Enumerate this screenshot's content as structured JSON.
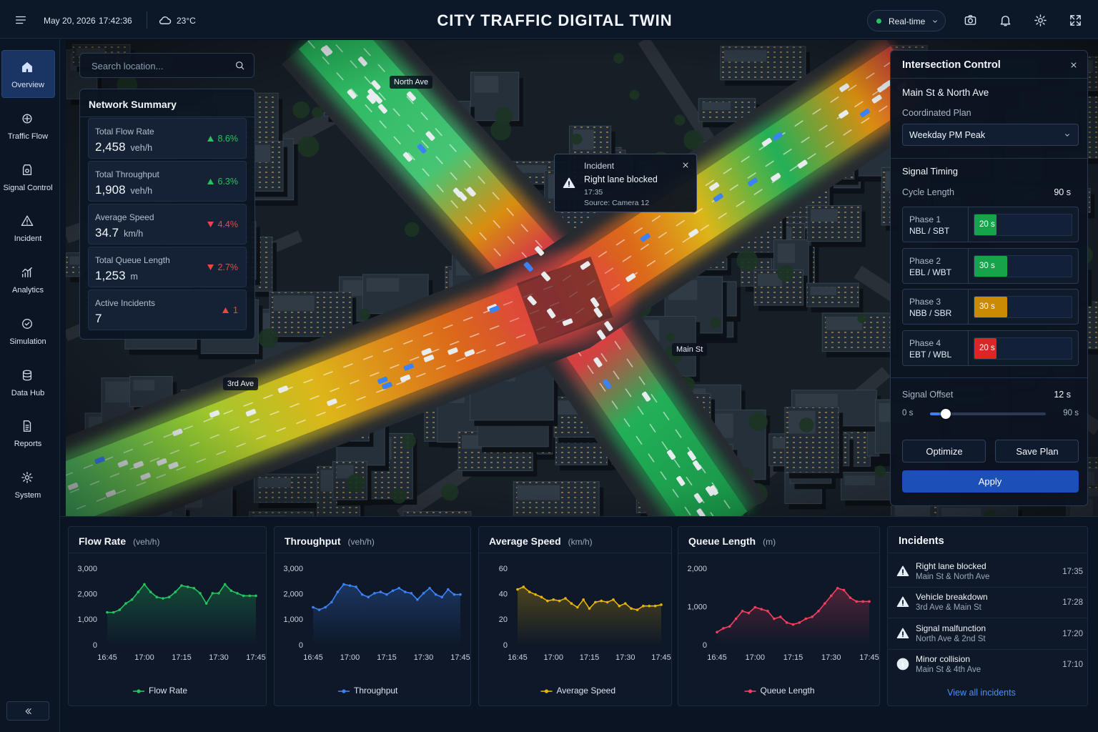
{
  "header": {
    "date": "May 20, 2026",
    "time": "17:42:36",
    "temperature": "23°C",
    "title": "CITY TRAFFIC DIGITAL TWIN",
    "mode": "Real-time"
  },
  "sidebar": {
    "items": [
      "Overview",
      "Traffic Flow",
      "Signal Control",
      "Incident",
      "Analytics",
      "Simulation",
      "Data Hub",
      "Reports",
      "System"
    ]
  },
  "search": {
    "placeholder": "Search location..."
  },
  "network_summary": {
    "title": "Network Summary",
    "items": [
      {
        "label": "Total Flow Rate",
        "value": "2,458",
        "unit": "veh/h",
        "change": "8.6%",
        "trend": "up",
        "color": "#22c55e"
      },
      {
        "label": "Total Throughput",
        "value": "1,908",
        "unit": "veh/h",
        "change": "6.3%",
        "trend": "up",
        "color": "#22c55e"
      },
      {
        "label": "Average Speed",
        "value": "34.7",
        "unit": "km/h",
        "change": "4.4%",
        "trend": "down",
        "color": "#ef4444"
      },
      {
        "label": "Total Queue Length",
        "value": "1,253",
        "unit": "m",
        "change": "2.7%",
        "trend": "down",
        "color": "#ef4444"
      },
      {
        "label": "Active Incidents",
        "value": "7",
        "change": "1",
        "trend": "up",
        "color": "#ef4444"
      }
    ]
  },
  "map": {
    "labels": [
      "North Ave",
      "Main St",
      "3rd Ave"
    ]
  },
  "incident_popup": {
    "title": "Incident",
    "message": "Right lane blocked",
    "time": "17:35",
    "source": "Source: Camera 12"
  },
  "intersection_control": {
    "title": "Intersection Control",
    "intersection": "Main St & North Ave",
    "plan_label": "Coordinated Plan",
    "plan": "Weekday PM Peak",
    "timing_title": "Signal Timing",
    "cycle_label": "Cycle Length",
    "cycle": {
      "value": 90,
      "label": "90 s"
    },
    "phases": [
      {
        "name": "Phase 1",
        "movement": "NBL / SBT",
        "value": 20,
        "label": "20 s",
        "color": "#16a34a"
      },
      {
        "name": "Phase 2",
        "movement": "EBL / WBT",
        "value": 30,
        "label": "30 s",
        "color": "#16a34a"
      },
      {
        "name": "Phase 3",
        "movement": "NBB / SBR",
        "value": 30,
        "label": "30 s",
        "color": "#ca8a04"
      },
      {
        "name": "Phase 4",
        "movement": "EBT / WBL",
        "value": 20,
        "label": "20 s",
        "color": "#dc2626"
      }
    ],
    "offset_label": "Signal Offset",
    "offset": {
      "value": 12,
      "label": "12 s"
    },
    "offset_range": [
      {
        "value": 0,
        "label": "0 s"
      },
      {
        "value": 90,
        "label": "90 s"
      }
    ],
    "buttons": [
      "Optimize",
      "Save Plan"
    ],
    "apply": "Apply"
  },
  "chart_data": [
    {
      "type": "line",
      "title": "Flow Rate",
      "subtitle": "(veh/h)",
      "categories": [
        "16:45",
        null,
        null,
        null,
        null,
        null,
        "17:00",
        null,
        null,
        null,
        null,
        null,
        "17:15",
        null,
        null,
        null,
        null,
        null,
        "17:30",
        null,
        null,
        null,
        null,
        null,
        "17:45"
      ],
      "series": [
        {
          "name": "Flow Rate",
          "color": "#22c55e",
          "values": [
            1300,
            1300,
            1400,
            1650,
            1800,
            2100,
            2400,
            2100,
            1900,
            1850,
            1900,
            2100,
            2350,
            2300,
            2250,
            2050,
            1650,
            2050,
            2050,
            2400,
            2150,
            2050,
            1950,
            1950,
            1950
          ]
        }
      ],
      "ylim": [
        0,
        3000
      ],
      "yticks": [
        0,
        {
          "value": 1000,
          "label": "1,000"
        },
        {
          "value": 2000,
          "label": "2,000"
        },
        {
          "value": 3000,
          "label": "3,000"
        }
      ],
      "grid": false
    },
    {
      "type": "line",
      "title": "Throughput",
      "subtitle": "(veh/h)",
      "categories": [
        "16:45",
        null,
        null,
        null,
        null,
        null,
        "17:00",
        null,
        null,
        null,
        null,
        null,
        "17:15",
        null,
        null,
        null,
        null,
        null,
        "17:30",
        null,
        null,
        null,
        null,
        null,
        "17:45"
      ],
      "series": [
        {
          "name": "Throughput",
          "color": "#3b82f6",
          "values": [
            1500,
            1400,
            1500,
            1700,
            2100,
            2400,
            2350,
            2300,
            2000,
            1900,
            2050,
            2100,
            2000,
            2150,
            2250,
            2100,
            2050,
            1800,
            2050,
            2250,
            2000,
            1900,
            2200,
            2000,
            2000
          ]
        }
      ],
      "ylim": [
        0,
        3000
      ],
      "yticks": [
        0,
        {
          "value": 1000,
          "label": "1,000"
        },
        {
          "value": 2000,
          "label": "2,000"
        },
        {
          "value": 3000,
          "label": "3,000"
        }
      ],
      "grid": false
    },
    {
      "type": "line",
      "title": "Average Speed",
      "subtitle": "(km/h)",
      "categories": [
        "16:45",
        null,
        null,
        null,
        null,
        null,
        "17:00",
        null,
        null,
        null,
        null,
        null,
        "17:15",
        null,
        null,
        null,
        null,
        null,
        "17:30",
        null,
        null,
        null,
        null,
        null,
        "17:45"
      ],
      "series": [
        {
          "name": "Average Speed",
          "color": "#eab308",
          "values": [
            44,
            46,
            42,
            40,
            38,
            35,
            36,
            35,
            37,
            33,
            30,
            36,
            29,
            34,
            35,
            34,
            36,
            31,
            33,
            29,
            28,
            31,
            31,
            31,
            32
          ]
        }
      ],
      "ylim": [
        0,
        60
      ],
      "yticks": [
        0,
        20,
        40,
        60
      ],
      "grid": false
    },
    {
      "type": "line",
      "title": "Queue Length",
      "subtitle": "(m)",
      "categories": [
        "16:45",
        null,
        null,
        null,
        null,
        null,
        "17:00",
        null,
        null,
        null,
        null,
        null,
        "17:15",
        null,
        null,
        null,
        null,
        null,
        "17:30",
        null,
        null,
        null,
        null,
        null,
        "17:45"
      ],
      "series": [
        {
          "name": "Queue Length",
          "color": "#f43f5e",
          "values": [
            350,
            450,
            500,
            700,
            900,
            850,
            1000,
            950,
            900,
            700,
            750,
            600,
            550,
            600,
            700,
            750,
            900,
            1100,
            1300,
            1500,
            1450,
            1250,
            1150,
            1150,
            1150
          ]
        }
      ],
      "ylim": [
        0,
        2000
      ],
      "yticks": [
        0,
        {
          "value": 1000,
          "label": "1,000"
        },
        {
          "value": 2000,
          "label": "2,000"
        }
      ],
      "grid": false
    }
  ],
  "incidents": {
    "title": "Incidents",
    "items": [
      {
        "title": "Right lane blocked",
        "location": "Main St & North Ave",
        "time": "17:35",
        "kind": "warning",
        "color": "#ef4444"
      },
      {
        "title": "Vehicle breakdown",
        "location": "3rd Ave & Main St",
        "time": "17:28",
        "kind": "warning",
        "color": "#f59e0b"
      },
      {
        "title": "Signal malfunction",
        "location": "North Ave & 2nd St",
        "time": "17:20",
        "kind": "warning",
        "color": "#facc15"
      },
      {
        "title": "Minor collision",
        "location": "Main St & 4th Ave",
        "time": "17:10",
        "kind": "info",
        "color": "#3b82f6"
      }
    ],
    "link": "View all incidents"
  }
}
